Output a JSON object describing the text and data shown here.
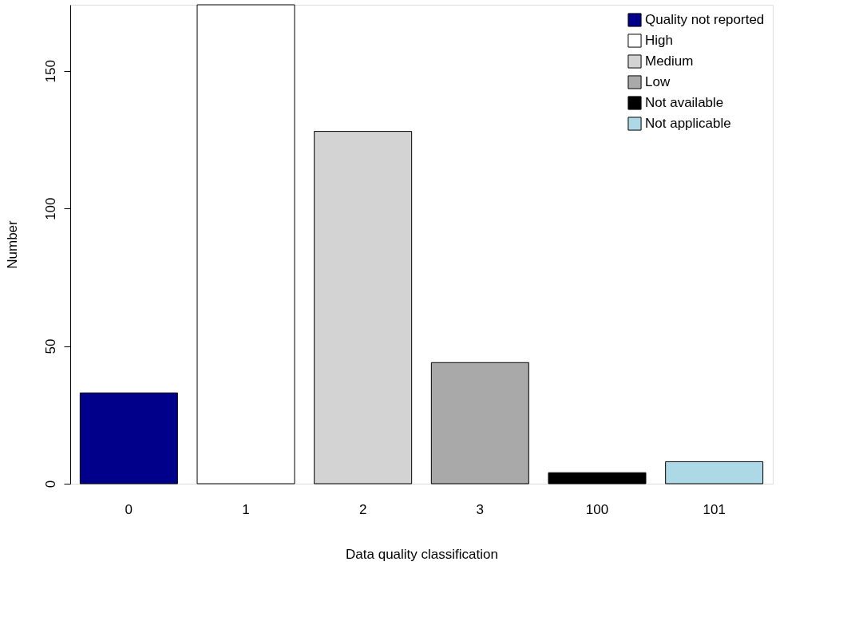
{
  "chart_data": {
    "type": "bar",
    "xlabel": "Data quality classification",
    "ylabel": "Number",
    "categories": [
      "0",
      "1",
      "2",
      "3",
      "100",
      "101"
    ],
    "series": [
      {
        "name": "Quality not reported",
        "color": "#00008b",
        "values": [
          33,
          null,
          null,
          null,
          null,
          null
        ]
      },
      {
        "name": "High",
        "color": "#ffffff",
        "values": [
          null,
          174,
          null,
          null,
          null,
          null
        ]
      },
      {
        "name": "Medium",
        "color": "#d3d3d3",
        "values": [
          null,
          null,
          128,
          null,
          null,
          null
        ]
      },
      {
        "name": "Low",
        "color": "#a9a9a9",
        "values": [
          null,
          null,
          null,
          44,
          null,
          null
        ]
      },
      {
        "name": "Not available",
        "color": "#000000",
        "values": [
          null,
          null,
          null,
          null,
          4,
          null
        ]
      },
      {
        "name": "Not applicable",
        "color": "#add8e6",
        "values": [
          null,
          null,
          null,
          null,
          null,
          8
        ]
      }
    ],
    "ylim": [
      0,
      174
    ],
    "yticks": [
      0,
      50,
      100,
      150
    ],
    "grid": false,
    "legend": "top right"
  }
}
